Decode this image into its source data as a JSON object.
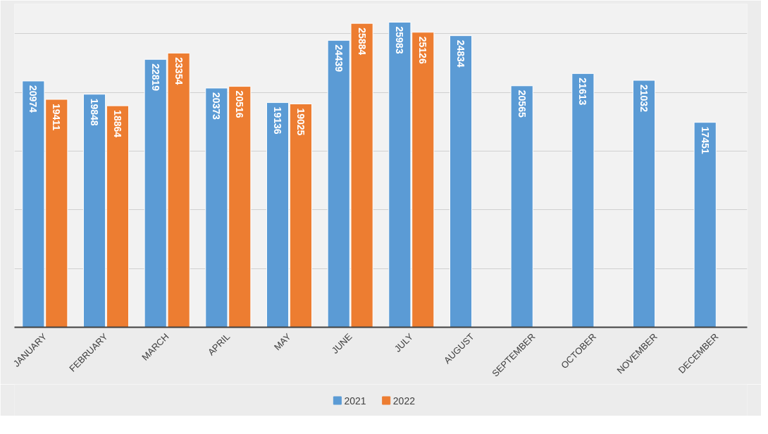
{
  "chart_data": {
    "type": "bar",
    "categories": [
      "JANUARY",
      "FEBRUARY",
      "MARCH",
      "APRIL",
      "MAY",
      "JUNE",
      "JULY",
      "AUGUST",
      "SEPTEMBER",
      "OCTOBER",
      "NOVEMBER",
      "DECEMBER"
    ],
    "series": [
      {
        "name": "2021",
        "color": "#5b9bd5",
        "values": [
          20974,
          19848,
          22819,
          20373,
          19136,
          24439,
          25983,
          24834,
          20565,
          21613,
          21032,
          17451
        ]
      },
      {
        "name": "2022",
        "color": "#ed7d31",
        "values": [
          19411,
          18864,
          23354,
          20516,
          19025,
          25884,
          25126,
          null,
          null,
          null,
          null,
          null
        ]
      }
    ],
    "grid": "y",
    "tick_labels": "x",
    "data_labels": true,
    "legend": "bottom"
  }
}
